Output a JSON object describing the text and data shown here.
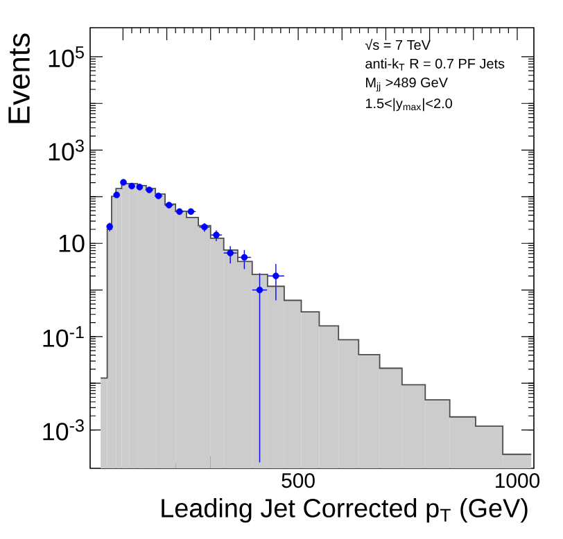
{
  "chart_data": {
    "type": "histogram",
    "xlabel": "Leading Jet Corrected p$_{T}$ (GeV)",
    "ylabel": "Events",
    "annotations": [
      "√s = 7 TeV",
      "anti-k$_{T}$ R = 0.7 PF Jets",
      "M$_{jj}$ >489 GeV",
      "1.5<|y$_{max}$|<2.0"
    ],
    "bins": [
      49,
      64,
      74,
      84,
      97,
      114,
      133,
      153,
      174,
      196,
      220,
      245,
      272,
      300,
      330,
      362,
      395,
      430,
      468,
      507,
      548,
      592,
      638,
      686,
      737,
      790,
      846,
      905,
      967,
      1032
    ],
    "values": [
      0.013,
      20,
      102,
      150,
      190,
      190,
      173,
      150,
      114,
      69,
      49,
      36,
      24,
      12.9,
      7.2,
      4.1,
      2.15,
      1.2,
      0.6,
      0.34,
      0.17,
      0.086,
      0.041,
      0.021,
      0.0093,
      0.0044,
      0.0019,
      0.0012,
      0.0003
    ],
    "color": "#cccccc",
    "series": [
      {
        "type": "scatter",
        "color": "#0000ff",
        "marker": "circle",
        "x": [
          69.6,
          85.4,
          101,
          120,
          138,
          160,
          181,
          205,
          229,
          255,
          286,
          313,
          345,
          377,
          412,
          449
        ],
        "values": [
          22.9,
          109,
          203,
          169,
          161,
          140,
          104,
          66,
          48,
          48,
          22.4,
          15.1,
          6.2,
          5.0,
          1.0,
          2.0
        ],
        "errors": [
          4.8,
          10,
          14,
          13,
          13,
          12,
          10,
          8,
          7,
          7,
          4.7,
          3.9,
          2.5,
          2.2,
          [
            0.0002,
            2.3
          ],
          [
            0.6,
            3.6
          ]
        ],
        "xerrors": [
          5,
          5,
          6,
          7,
          7,
          9,
          9,
          10,
          10,
          11,
          12,
          13,
          15,
          15,
          17,
          19
        ]
      },
      {
        "type": "step",
        "color": "#4c4c4c",
        "marker": "none",
        "x": [
          49,
          64,
          74,
          84,
          97,
          114,
          133,
          153,
          174,
          196,
          220,
          245,
          272,
          300,
          330,
          362,
          395,
          430,
          468,
          507,
          548,
          592,
          638,
          686,
          737,
          790,
          846,
          905,
          967,
          1032
        ],
        "values": [
          0.013,
          20,
          102,
          150,
          190,
          190,
          173,
          150,
          114,
          69,
          49,
          36,
          24,
          12.9,
          7.2,
          4.1,
          2.15,
          1.2,
          0.6,
          0.34,
          0.17,
          0.086,
          0.041,
          0.021,
          0.0093,
          0.0044,
          0.0019,
          0.0012,
          0.0003,
          0.0003
        ]
      }
    ],
    "log": "y",
    "xlim": [
      25,
      1038
    ],
    "ylim": [
      0.00015,
      420000
    ],
    "xticks": [
      {
        "value": 100,
        "label": null
      },
      {
        "value": 200,
        "label": null
      },
      {
        "value": 300,
        "label": null
      },
      {
        "value": 400,
        "label": null
      },
      500,
      {
        "value": 600,
        "label": null
      },
      {
        "value": 700,
        "label": null
      },
      {
        "value": 800,
        "label": null
      },
      {
        "value": 900,
        "label": null
      },
      1000
    ],
    "yticks": [
      {
        "value": 0.001,
        "label": "10$^{-3}$"
      },
      {
        "value": 0.01,
        "label": null
      },
      {
        "value": 0.1,
        "label": "10$^{-1}$"
      },
      {
        "value": 1,
        "label": null
      },
      10,
      {
        "value": 100,
        "label": null
      },
      {
        "value": 1000,
        "label": "10$^{3}$"
      },
      {
        "value": 10000,
        "label": null
      },
      {
        "value": 100000,
        "label": "10$^{5}$"
      }
    ]
  }
}
